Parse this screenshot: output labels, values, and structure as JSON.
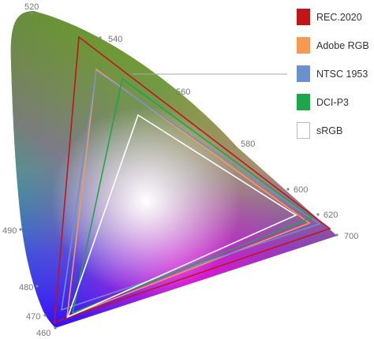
{
  "wavelength_labels": [
    "520",
    "540",
    "560",
    "580",
    "600",
    "620",
    "700",
    "490",
    "480",
    "470",
    "460"
  ],
  "gamuts": [
    {
      "name": "REC.2020",
      "color": "#c0161a",
      "fill": "#c0161a"
    },
    {
      "name": "Adobe RGB",
      "color": "#f59a52",
      "fill": "#f59a52"
    },
    {
      "name": "NTSC 1953",
      "color": "#6c8fd0",
      "fill": "#6c8fd0"
    },
    {
      "name": "DCI-P3",
      "color": "#1ea64a",
      "fill": "#1ea64a"
    },
    {
      "name": "sRGB",
      "color": "#bbbbbb",
      "fill": "#ffffff"
    }
  ],
  "colors": {
    "green": "#00e000",
    "yellow": "#ffe800",
    "red": "#ff1a1a",
    "magenta": "#ff00c8",
    "blue": "#2a00ff",
    "cyan": "#00b0e0",
    "white_point": "#ffffff",
    "leader_line": "#aaaaaa",
    "label_text": "#777777"
  }
}
